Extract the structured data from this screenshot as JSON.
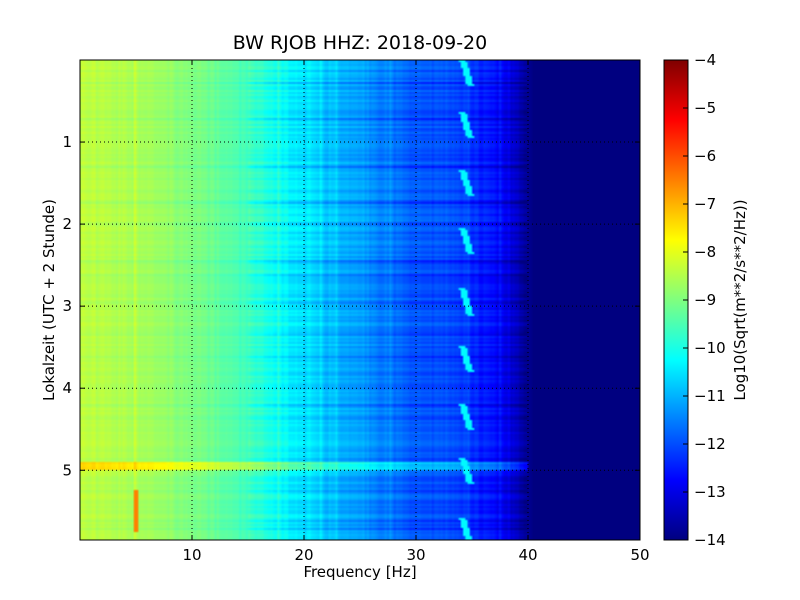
{
  "chart_data": {
    "type": "heatmap",
    "title": "BW RJOB HHZ: 2018-09-20",
    "xlabel": "Frequency [Hz]",
    "ylabel": "Lokalzeit (UTC + 2 Stunde)",
    "xlim": [
      0,
      50
    ],
    "ylim": [
      5.85,
      0
    ],
    "y_inverted": true,
    "xticks": [
      10,
      20,
      30,
      40,
      50
    ],
    "yticks": [
      1,
      2,
      3,
      4,
      5
    ],
    "grid": true,
    "colormap": "jet",
    "colorbar": {
      "label": "Log10(Sqrt(m**2/s**2/Hz))",
      "range": [
        -14,
        -4
      ],
      "ticks": [
        -4,
        -5,
        -6,
        -7,
        -8,
        -9,
        -10,
        -11,
        -12,
        -13,
        -14
      ]
    },
    "spectral_profile_log10": {
      "frequency_hz": [
        0,
        5,
        10,
        15,
        20,
        25,
        30,
        33,
        35,
        38,
        39.5,
        40.5,
        50
      ],
      "amplitude": [
        -8.4,
        -8.6,
        -9.0,
        -9.6,
        -10.6,
        -11.2,
        -11.9,
        -12.0,
        -12.3,
        -12.9,
        -13.6,
        -14.0,
        -14.0
      ]
    },
    "features": [
      {
        "text": "narrowband line near 34.5 Hz repeating about every 0.7 h",
        "frequency_hz": 34.5,
        "times_h": [
          0.15,
          0.8,
          1.5,
          2.2,
          2.95,
          3.65,
          4.35,
          5.0,
          5.75
        ]
      },
      {
        "text": "transient near 5 Hz",
        "frequency_hz": 5.0,
        "time_h": [
          5.25,
          5.75
        ],
        "amplitude": -6.5
      },
      {
        "text": "broadband event",
        "time_h": 4.95,
        "frequency_hz": [
          0,
          40
        ],
        "amplitude_boost": 1.0
      }
    ]
  }
}
